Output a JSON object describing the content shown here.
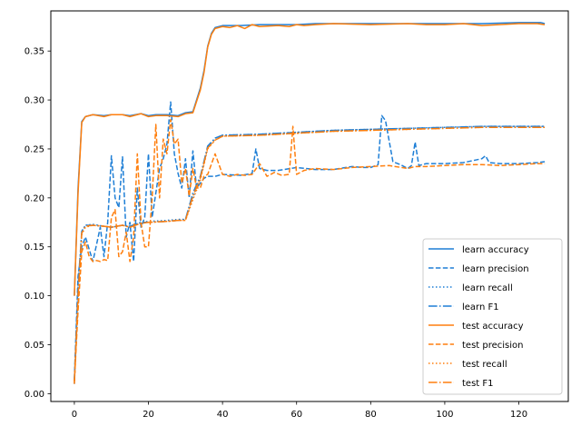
{
  "chart_data": {
    "type": "line",
    "title": "",
    "xlabel": "",
    "ylabel": "",
    "xlim": [
      -6.35,
      133.35
    ],
    "ylim": [
      -0.008,
      0.391
    ],
    "xticks": [
      0,
      20,
      40,
      60,
      80,
      100,
      120
    ],
    "yticks": [
      0.0,
      0.05,
      0.1,
      0.15,
      0.2,
      0.25,
      0.3,
      0.35
    ],
    "ytick_labels": [
      "0.00",
      "0.05",
      "0.10",
      "0.15",
      "0.20",
      "0.25",
      "0.30",
      "0.35"
    ],
    "grid": false,
    "legend_position": "lower right",
    "series": [
      {
        "name": "learn accuracy",
        "color": "#1f7fd6",
        "dash": "solid",
        "x": [
          0,
          1,
          2,
          3,
          5,
          8,
          10,
          13,
          15,
          18,
          20,
          22,
          25,
          28,
          30,
          32,
          34,
          35,
          36,
          37,
          38,
          40,
          45,
          50,
          55,
          60,
          65,
          70,
          80,
          90,
          100,
          110,
          120,
          126,
          127
        ],
        "values": [
          0.1,
          0.21,
          0.278,
          0.283,
          0.285,
          0.284,
          0.285,
          0.285,
          0.284,
          0.286,
          0.284,
          0.285,
          0.285,
          0.284,
          0.287,
          0.288,
          0.312,
          0.33,
          0.355,
          0.368,
          0.374,
          0.376,
          0.376,
          0.377,
          0.377,
          0.377,
          0.378,
          0.378,
          0.378,
          0.378,
          0.378,
          0.378,
          0.379,
          0.379,
          0.378
        ]
      },
      {
        "name": "learn precision",
        "color": "#1f7fd6",
        "dash": "dashed",
        "x": [
          0,
          1,
          2,
          3,
          5,
          7,
          8,
          9,
          10,
          11,
          12,
          13,
          14,
          15,
          16,
          17,
          18,
          19,
          20,
          21,
          22,
          23,
          24,
          25,
          26,
          27,
          28,
          29,
          30,
          31,
          32,
          33,
          34,
          35,
          36,
          38,
          40,
          45,
          48,
          49,
          50,
          52,
          55,
          60,
          65,
          70,
          75,
          78,
          80,
          82,
          83,
          84,
          86,
          88,
          90,
          91,
          92,
          93,
          95,
          100,
          105,
          110,
          111,
          112,
          115,
          120,
          125,
          127
        ],
        "values": [
          0.015,
          0.12,
          0.15,
          0.16,
          0.135,
          0.17,
          0.14,
          0.175,
          0.243,
          0.2,
          0.19,
          0.242,
          0.16,
          0.175,
          0.135,
          0.21,
          0.17,
          0.18,
          0.245,
          0.18,
          0.205,
          0.23,
          0.24,
          0.255,
          0.298,
          0.245,
          0.225,
          0.21,
          0.24,
          0.2,
          0.248,
          0.21,
          0.215,
          0.22,
          0.222,
          0.222,
          0.224,
          0.223,
          0.225,
          0.25,
          0.23,
          0.228,
          0.228,
          0.231,
          0.229,
          0.229,
          0.232,
          0.231,
          0.231,
          0.234,
          0.284,
          0.279,
          0.237,
          0.234,
          0.23,
          0.233,
          0.257,
          0.233,
          0.235,
          0.235,
          0.236,
          0.24,
          0.243,
          0.236,
          0.235,
          0.235,
          0.236,
          0.237
        ]
      },
      {
        "name": "learn recall",
        "color": "#1f7fd6",
        "dash": "dotted",
        "x": [
          0,
          1,
          2,
          3,
          5,
          8,
          10,
          13,
          15,
          18,
          20,
          25,
          28,
          30,
          32,
          34,
          36,
          38,
          40,
          50,
          60,
          70,
          80,
          90,
          100,
          110,
          120,
          127
        ],
        "values": [
          0.01,
          0.1,
          0.165,
          0.172,
          0.173,
          0.171,
          0.17,
          0.172,
          0.171,
          0.175,
          0.176,
          0.177,
          0.178,
          0.178,
          0.2,
          0.22,
          0.252,
          0.261,
          0.264,
          0.265,
          0.267,
          0.269,
          0.27,
          0.271,
          0.272,
          0.273,
          0.273,
          0.273
        ]
      },
      {
        "name": "learn F1",
        "color": "#1f7fd6",
        "dash": "dashdot",
        "x": [
          0,
          1,
          2,
          3,
          5,
          8,
          10,
          13,
          15,
          18,
          20,
          25,
          28,
          30,
          32,
          34,
          36,
          38,
          40,
          50,
          60,
          70,
          80,
          90,
          100,
          110,
          120,
          127
        ],
        "values": [
          0.012,
          0.11,
          0.166,
          0.172,
          0.172,
          0.171,
          0.17,
          0.172,
          0.171,
          0.175,
          0.175,
          0.176,
          0.177,
          0.178,
          0.205,
          0.222,
          0.253,
          0.261,
          0.264,
          0.265,
          0.267,
          0.269,
          0.27,
          0.271,
          0.272,
          0.273,
          0.273,
          0.273
        ]
      },
      {
        "name": "test accuracy",
        "color": "#ff7f0e",
        "dash": "solid",
        "x": [
          0,
          1,
          2,
          3,
          5,
          8,
          10,
          13,
          15,
          18,
          20,
          22,
          25,
          28,
          30,
          32,
          34,
          35,
          36,
          37,
          38,
          40,
          42,
          44,
          46,
          48,
          50,
          55,
          58,
          60,
          62,
          65,
          70,
          80,
          90,
          95,
          100,
          105,
          110,
          120,
          125,
          127
        ],
        "values": [
          0.1,
          0.205,
          0.277,
          0.283,
          0.285,
          0.283,
          0.285,
          0.285,
          0.283,
          0.286,
          0.283,
          0.284,
          0.284,
          0.283,
          0.286,
          0.287,
          0.31,
          0.328,
          0.354,
          0.367,
          0.373,
          0.375,
          0.374,
          0.376,
          0.373,
          0.377,
          0.375,
          0.376,
          0.375,
          0.377,
          0.376,
          0.377,
          0.378,
          0.377,
          0.378,
          0.377,
          0.377,
          0.378,
          0.376,
          0.378,
          0.378,
          0.377
        ]
      },
      {
        "name": "test precision",
        "color": "#ff7f0e",
        "dash": "dashed",
        "x": [
          0,
          1,
          2,
          3,
          4,
          5,
          6,
          7,
          8,
          9,
          10,
          11,
          12,
          13,
          14,
          15,
          16,
          17,
          18,
          19,
          20,
          21,
          22,
          23,
          24,
          25,
          26,
          27,
          28,
          29,
          30,
          31,
          32,
          33,
          34,
          35,
          36,
          38,
          40,
          42,
          44,
          46,
          48,
          50,
          52,
          54,
          56,
          58,
          59,
          60,
          62,
          65,
          70,
          75,
          80,
          85,
          90,
          92,
          95,
          100,
          105,
          110,
          115,
          120,
          125,
          127
        ],
        "values": [
          0.012,
          0.085,
          0.145,
          0.155,
          0.14,
          0.135,
          0.136,
          0.135,
          0.137,
          0.136,
          0.18,
          0.188,
          0.14,
          0.145,
          0.165,
          0.135,
          0.16,
          0.245,
          0.175,
          0.15,
          0.15,
          0.2,
          0.275,
          0.2,
          0.26,
          0.245,
          0.28,
          0.255,
          0.26,
          0.215,
          0.23,
          0.202,
          0.23,
          0.21,
          0.21,
          0.222,
          0.224,
          0.245,
          0.224,
          0.222,
          0.224,
          0.223,
          0.224,
          0.235,
          0.222,
          0.226,
          0.223,
          0.224,
          0.273,
          0.224,
          0.228,
          0.23,
          0.229,
          0.231,
          0.232,
          0.233,
          0.23,
          0.232,
          0.232,
          0.233,
          0.234,
          0.234,
          0.233,
          0.234,
          0.235,
          0.235
        ]
      },
      {
        "name": "test recall",
        "color": "#ff7f0e",
        "dash": "dotted",
        "x": [
          0,
          1,
          2,
          3,
          5,
          8,
          10,
          13,
          15,
          18,
          20,
          25,
          28,
          30,
          32,
          34,
          36,
          38,
          40,
          50,
          60,
          70,
          80,
          90,
          100,
          110,
          120,
          127
        ],
        "values": [
          0.01,
          0.095,
          0.163,
          0.17,
          0.172,
          0.171,
          0.17,
          0.172,
          0.17,
          0.174,
          0.175,
          0.176,
          0.177,
          0.177,
          0.198,
          0.218,
          0.25,
          0.259,
          0.263,
          0.264,
          0.266,
          0.268,
          0.269,
          0.27,
          0.271,
          0.272,
          0.272,
          0.272
        ]
      },
      {
        "name": "test F1",
        "color": "#ff7f0e",
        "dash": "dashdot",
        "x": [
          0,
          1,
          2,
          3,
          5,
          8,
          10,
          13,
          15,
          18,
          20,
          25,
          28,
          30,
          32,
          34,
          36,
          38,
          40,
          50,
          60,
          70,
          80,
          90,
          100,
          110,
          120,
          127
        ],
        "values": [
          0.011,
          0.1,
          0.164,
          0.171,
          0.172,
          0.171,
          0.17,
          0.172,
          0.17,
          0.174,
          0.175,
          0.176,
          0.177,
          0.177,
          0.202,
          0.22,
          0.251,
          0.259,
          0.263,
          0.264,
          0.266,
          0.268,
          0.269,
          0.27,
          0.271,
          0.272,
          0.272,
          0.272
        ]
      }
    ]
  }
}
